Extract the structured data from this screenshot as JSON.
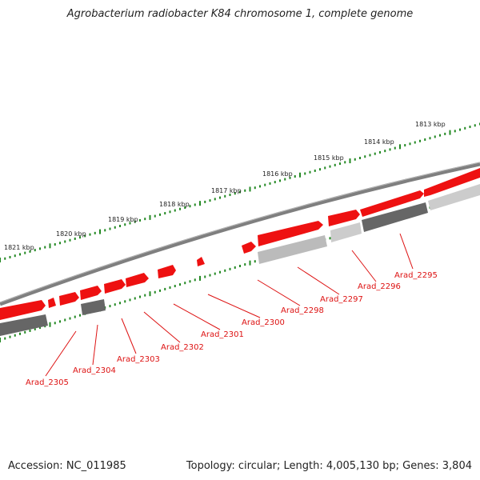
{
  "title": "Agrobacterium radiobacter K84 chromosome 1, complete genome",
  "footer": {
    "accession": "Accession: NC_011985",
    "summary": "Topology: circular; Length: 4,005,130 bp; Genes: 3,804"
  },
  "colors": {
    "gene_forward": "#ee1111",
    "gene_dark": "#666666",
    "gene_light": "#cccccc",
    "backbone": "#888888",
    "ticks": "#228822",
    "label": "#dd1111"
  },
  "tick_labels": [
    "1813 kbp",
    "1814 kbp",
    "1815 kbp",
    "1816 kbp",
    "1817 kbp",
    "1818 kbp",
    "1819 kbp",
    "1820 kbp",
    "1821 kbp"
  ],
  "gene_labels": [
    "Arad_2295",
    "Arad_2296",
    "Arad_2297",
    "Arad_2298",
    "Arad_2300",
    "Arad_2301",
    "Arad_2302",
    "Arad_2303",
    "Arad_2304",
    "Arad_2305"
  ]
}
